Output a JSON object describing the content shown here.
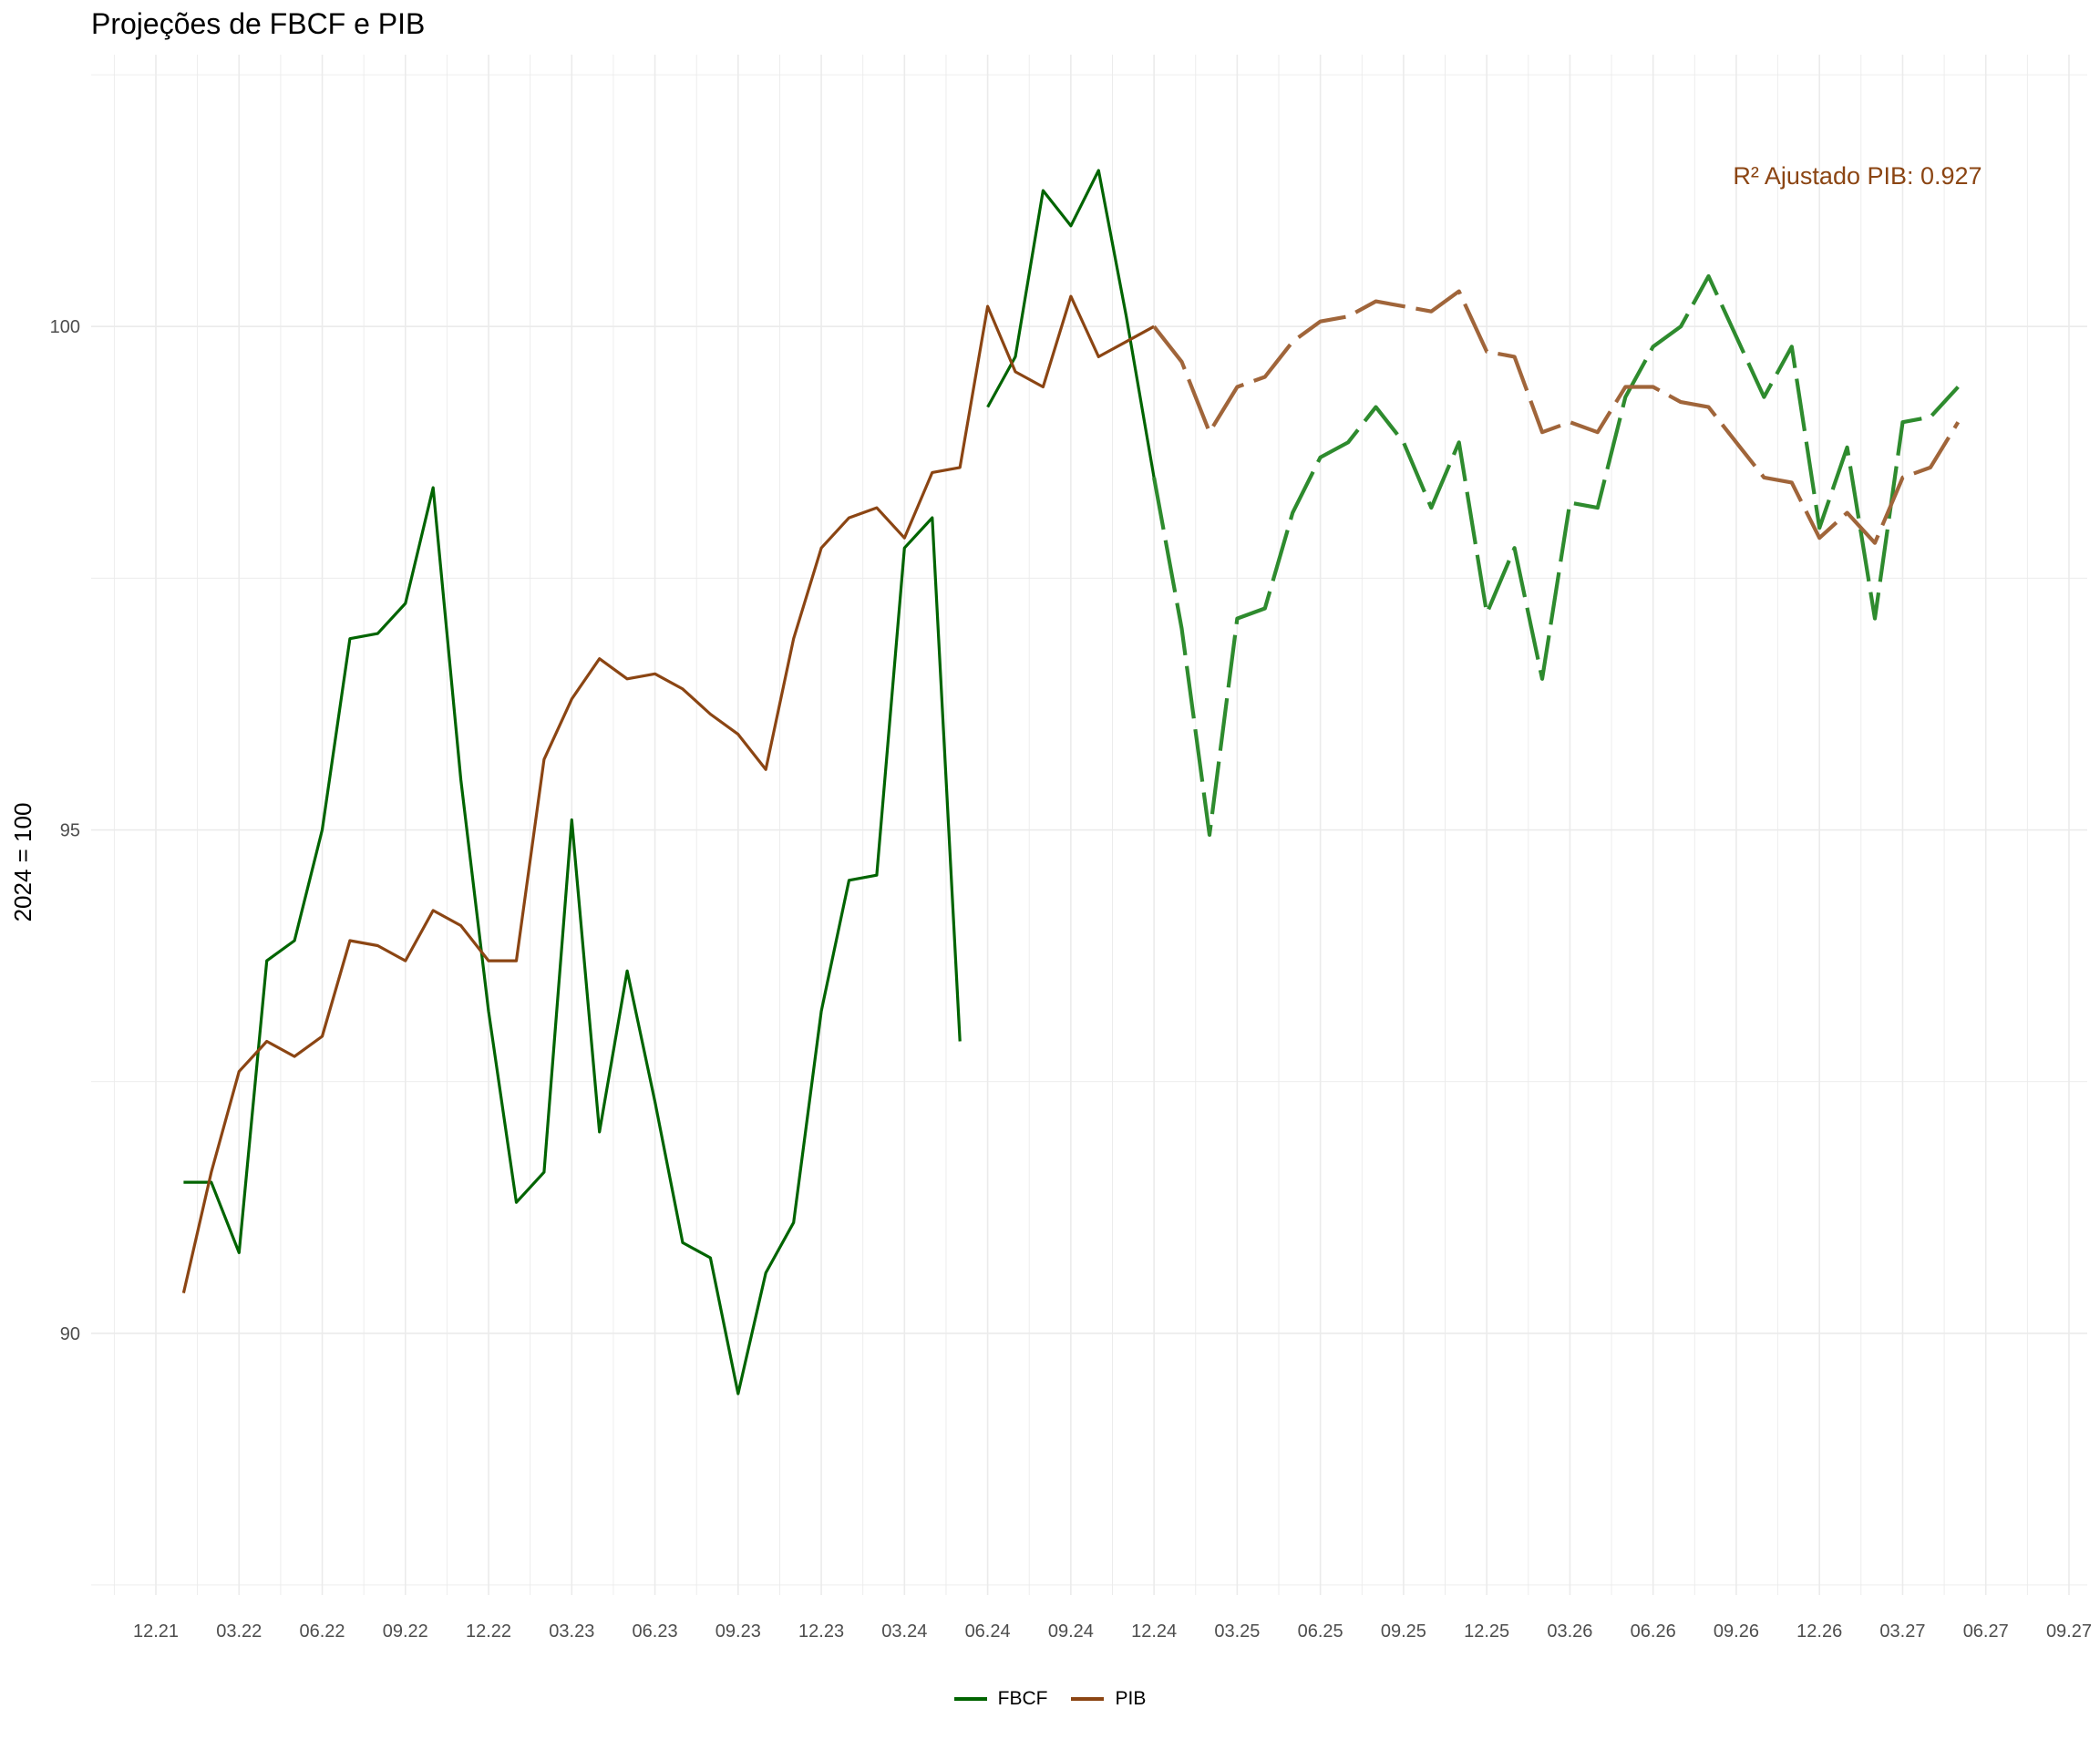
{
  "colors": {
    "fbcf": "#006400",
    "fbcf_proj": "#2e8b2e",
    "pib": "#8b4513",
    "pib_proj": "#a0653a",
    "grid": "#ebebeb",
    "annotation": "#8b4513"
  },
  "chart_data": {
    "type": "line",
    "title": "Projeções de FBCF e PIB",
    "xlabel": "",
    "ylabel": "2024 = 100",
    "x_tick_labels": [
      "12.21",
      "03.22",
      "06.22",
      "09.22",
      "12.22",
      "03.23",
      "06.23",
      "09.23",
      "12.23",
      "03.24",
      "06.24",
      "09.24",
      "12.24",
      "03.25",
      "06.25",
      "09.25",
      "12.25",
      "03.26",
      "06.26",
      "09.26",
      "12.26",
      "03.27",
      "06.27",
      "09.27"
    ],
    "y_ticks": [
      90,
      95,
      100
    ],
    "ylim": [
      87.4,
      102.7
    ],
    "grid": true,
    "legend_position": "bottom",
    "annotation": "R² Ajustado PIB: 0.927",
    "series": [
      {
        "name": "FBCF",
        "segments": [
          {
            "line_style": "solid",
            "x": [
              "2022-01",
              "2022-02",
              "2022-03",
              "2022-04",
              "2022-05",
              "2022-06",
              "2022-07",
              "2022-08",
              "2022-09",
              "2022-10",
              "2022-11",
              "2022-12",
              "2023-01",
              "2023-02",
              "2023-03",
              "2023-04",
              "2023-05",
              "2023-06",
              "2023-07",
              "2023-08",
              "2023-09",
              "2023-10",
              "2023-11",
              "2023-12",
              "2024-01",
              "2024-02",
              "2024-03",
              "2024-04",
              "2024-05"
            ],
            "y": [
              91.5,
              91.5,
              90.8,
              93.7,
              93.9,
              95.0,
              96.9,
              96.95,
              97.25,
              98.4,
              95.5,
              93.2,
              91.3,
              91.6,
              95.1,
              92.0,
              93.6,
              92.3,
              90.9,
              90.75,
              89.4,
              90.6,
              91.1,
              93.2,
              94.5,
              94.55,
              97.8,
              98.1,
              92.9
            ]
          },
          {
            "line_style": "solid",
            "x": [
              "2024-06",
              "2024-07",
              "2024-08",
              "2024-09",
              "2024-10",
              "2024-11",
              "2024-12"
            ],
            "y": [
              99.2,
              99.7,
              101.35,
              101.0,
              101.55,
              100.1,
              98.5
            ]
          },
          {
            "line_style": "dashed",
            "x": [
              "2024-12",
              "2025-01",
              "2025-02",
              "2025-03",
              "2025-04",
              "2025-05",
              "2025-06",
              "2025-07",
              "2025-08",
              "2025-09",
              "2025-10",
              "2025-11",
              "2025-12",
              "2026-01",
              "2026-02",
              "2026-03",
              "2026-04",
              "2026-05",
              "2026-06",
              "2026-07",
              "2026-08",
              "2026-09",
              "2026-10",
              "2026-11",
              "2026-12",
              "2027-01",
              "2027-02",
              "2027-03",
              "2027-04",
              "2027-05"
            ],
            "y": [
              98.5,
              97.0,
              94.95,
              97.1,
              97.2,
              98.15,
              98.7,
              98.85,
              99.2,
              98.85,
              98.2,
              98.85,
              97.15,
              97.8,
              96.5,
              98.25,
              98.2,
              99.3,
              99.8,
              100.0,
              100.5,
              99.9,
              99.3,
              99.8,
              98.0,
              98.8,
              97.1,
              99.05,
              99.1,
              99.4
            ]
          }
        ]
      },
      {
        "name": "PIB",
        "segments": [
          {
            "line_style": "solid",
            "x": [
              "2022-01",
              "2022-02",
              "2022-03",
              "2022-04",
              "2022-05",
              "2022-06",
              "2022-07",
              "2022-08",
              "2022-09",
              "2022-10",
              "2022-11",
              "2022-12",
              "2023-01",
              "2023-02",
              "2023-03",
              "2023-04",
              "2023-05",
              "2023-06",
              "2023-07",
              "2023-08",
              "2023-09",
              "2023-10",
              "2023-11",
              "2023-12",
              "2024-01",
              "2024-02",
              "2024-03",
              "2024-04",
              "2024-05",
              "2024-06",
              "2024-07",
              "2024-08",
              "2024-09",
              "2024-10",
              "2024-11",
              "2024-12"
            ],
            "y": [
              90.4,
              91.6,
              92.6,
              92.9,
              92.75,
              92.95,
              93.9,
              93.85,
              93.7,
              94.2,
              94.05,
              93.7,
              93.7,
              95.7,
              96.3,
              96.7,
              96.5,
              96.55,
              96.4,
              96.15,
              95.95,
              95.6,
              96.9,
              97.8,
              98.1,
              98.2,
              97.9,
              98.55,
              98.6,
              100.2,
              99.55,
              99.4,
              100.3,
              99.7,
              99.85,
              100.0
            ]
          },
          {
            "line_style": "dashed",
            "x": [
              "2024-12",
              "2025-01",
              "2025-02",
              "2025-03",
              "2025-04",
              "2025-05",
              "2025-06",
              "2025-07",
              "2025-08",
              "2025-09",
              "2025-10",
              "2025-11",
              "2025-12",
              "2026-01",
              "2026-02",
              "2026-03",
              "2026-04",
              "2026-05",
              "2026-06",
              "2026-07",
              "2026-08",
              "2026-09",
              "2026-10",
              "2026-11",
              "2026-12",
              "2027-01",
              "2027-02",
              "2027-03",
              "2027-04",
              "2027-05"
            ],
            "y": [
              100.0,
              99.65,
              98.95,
              99.4,
              99.5,
              99.85,
              100.05,
              100.1,
              100.25,
              100.2,
              100.15,
              100.35,
              99.75,
              99.7,
              98.95,
              99.05,
              98.95,
              99.4,
              99.4,
              99.25,
              99.2,
              98.85,
              98.5,
              98.45,
              97.9,
              98.15,
              97.85,
              98.5,
              98.6,
              99.05
            ]
          }
        ]
      }
    ]
  }
}
